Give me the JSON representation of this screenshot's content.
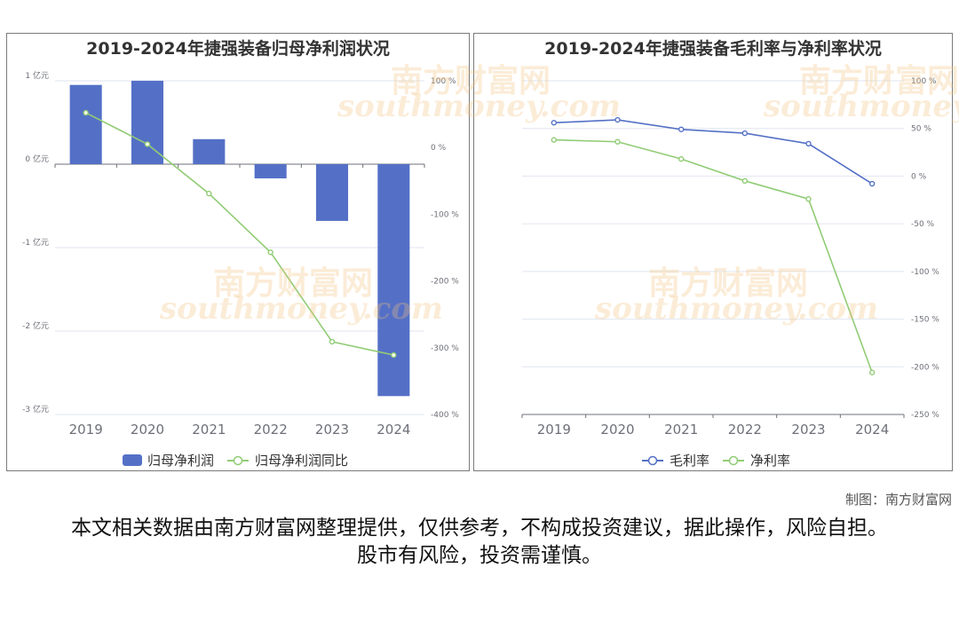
{
  "colors": {
    "bar": "#5470c6",
    "net_line": "#91cc75",
    "gross_line": "#5470c6",
    "axis": "#6e7079",
    "grid": "#e0e6f1"
  },
  "watermark": {
    "cn": "南方财富网",
    "en": "southmoney.com"
  },
  "credit": "制图：南方财富网",
  "disclaimer": "本文相关数据由南方财富网整理提供，仅供参考，不构成投资建议，据此操作，风险自担。股市有风险，投资需谨慎。",
  "chart_data": [
    {
      "type": "bar",
      "title": "2019-2024年捷强装备归母净利润状况",
      "categories": [
        "2019",
        "2020",
        "2021",
        "2022",
        "2023",
        "2024"
      ],
      "series": [
        {
          "name": "归母净利润",
          "type": "bar",
          "axis": "left",
          "values": [
            0.95,
            1.0,
            0.3,
            -0.17,
            -0.68,
            -2.78
          ]
        },
        {
          "name": "归母净利润同比",
          "type": "line",
          "axis": "right",
          "values": [
            52,
            5,
            -69,
            -157,
            -291,
            -311
          ]
        }
      ],
      "left_axis": {
        "ticks": [
          1,
          0,
          -1,
          -2,
          -3
        ],
        "tick_labels": [
          "1 亿元",
          "0 亿元",
          "-1 亿元",
          "-2 亿元",
          "-3 亿元"
        ],
        "range": [
          -3,
          1
        ]
      },
      "right_axis": {
        "ticks": [
          100,
          0,
          -100,
          -200,
          -300,
          -400
        ],
        "tick_labels": [
          "100 %",
          "0 %",
          "-100 %",
          "-200 %",
          "-300 %",
          "-400 %"
        ],
        "range": [
          -400,
          100
        ]
      },
      "legend": "bottom"
    },
    {
      "type": "line",
      "title": "2019-2024年捷强装备毛利率与净利率状况",
      "categories": [
        "2019",
        "2020",
        "2021",
        "2022",
        "2023",
        "2024"
      ],
      "series": [
        {
          "name": "毛利率",
          "values": [
            56,
            59,
            49,
            45,
            34,
            -8
          ]
        },
        {
          "name": "净利率",
          "values": [
            38,
            36,
            18,
            -5,
            -24,
            -206
          ]
        }
      ],
      "right_axis": {
        "ticks": [
          100,
          50,
          0,
          -50,
          -100,
          -150,
          -200,
          -250
        ],
        "tick_labels": [
          "100 %",
          "50 %",
          "0 %",
          "-50 %",
          "-100 %",
          "-150 %",
          "-200 %",
          "-250 %"
        ],
        "range": [
          -250,
          100
        ]
      },
      "legend": "bottom"
    }
  ]
}
